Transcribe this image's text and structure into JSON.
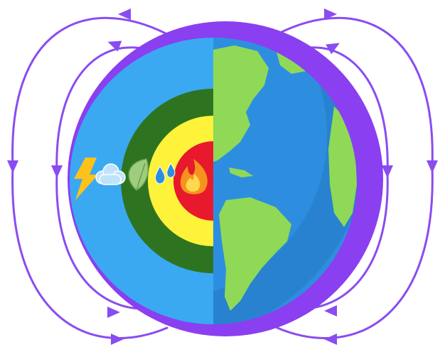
{
  "diagram": {
    "layers": [
      {
        "name": "magnetosphere",
        "color": "#8a3ff0"
      },
      {
        "name": "atmosphere",
        "color": "#3aa9f2"
      },
      {
        "name": "crust-biosphere",
        "color": "#2e7420"
      },
      {
        "name": "mantle",
        "color": "#fff23a"
      },
      {
        "name": "core",
        "color": "#e8192c"
      }
    ],
    "layer_icons": [
      "lightning-icon",
      "cloud-icon",
      "leaf-icon",
      "water-drops-icon",
      "fire-icon"
    ],
    "globe": {
      "ocean_color": "#2d8ee0",
      "ocean_shade_color": "#2478c2",
      "land_color": "#8fd957"
    },
    "field_line_color": "#8a4cf0"
  }
}
